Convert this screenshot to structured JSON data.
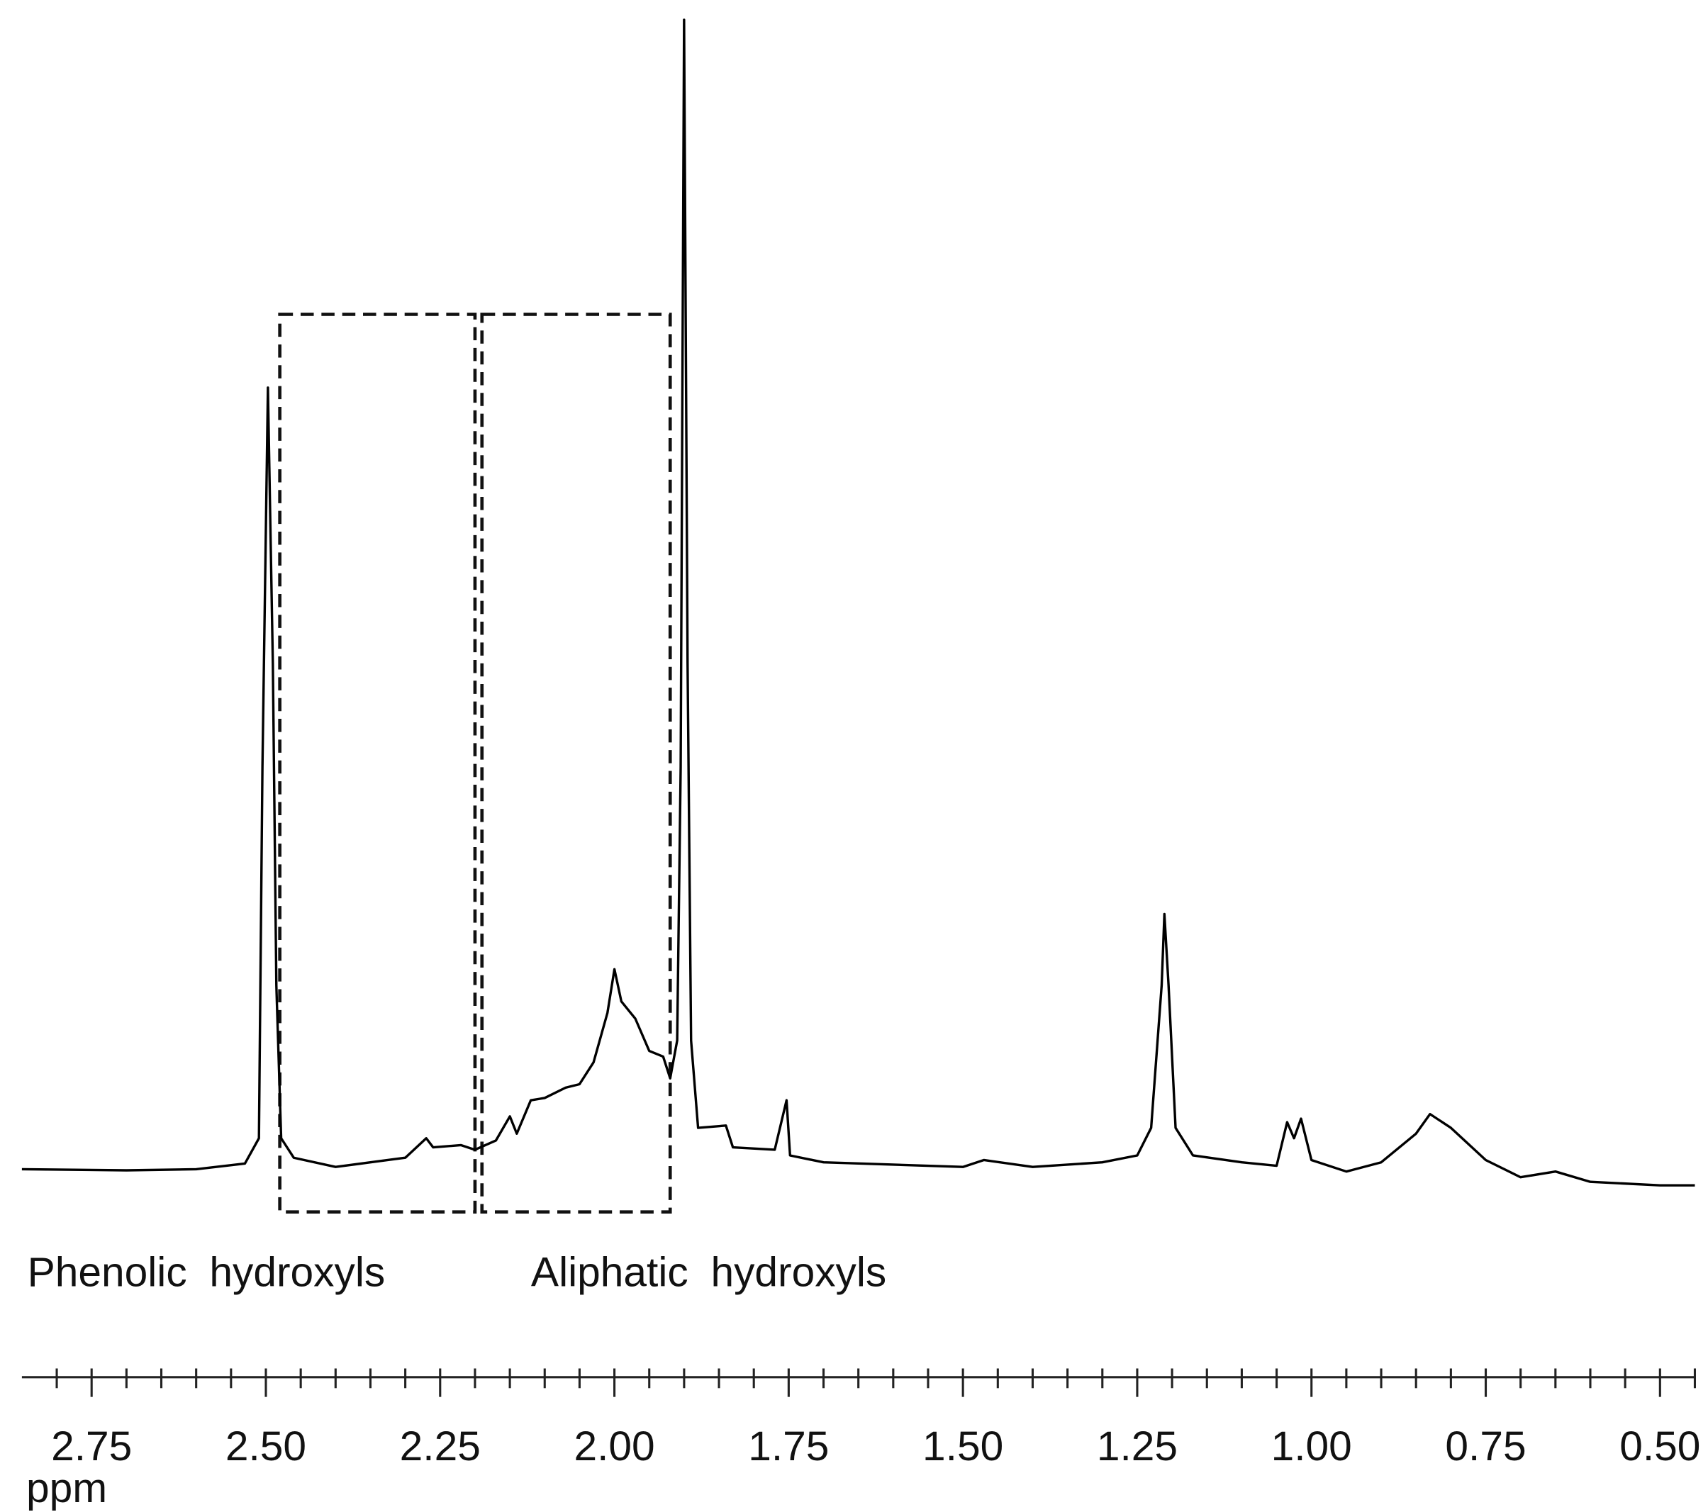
{
  "chart_data": {
    "type": "line",
    "x_label": "ppm",
    "color": "#000000",
    "xlim": [
      2.85,
      0.45
    ],
    "ylim": [
      -2,
      100
    ],
    "xticks": [
      {
        "value": 2.75,
        "label": "2.75"
      },
      {
        "value": 2.5,
        "label": "2.50"
      },
      {
        "value": 2.25,
        "label": "2.25"
      },
      {
        "value": 2.0,
        "label": "2.00"
      },
      {
        "value": 1.75,
        "label": "1.75"
      },
      {
        "value": 1.5,
        "label": "1.50"
      },
      {
        "value": 1.25,
        "label": "1.25"
      },
      {
        "value": 1.0,
        "label": "1.00"
      },
      {
        "value": 0.75,
        "label": "0.75"
      },
      {
        "value": 0.5,
        "label": "0.50"
      }
    ],
    "minor_xticks": [
      2.8,
      2.7,
      2.65,
      2.6,
      2.55,
      2.45,
      2.4,
      2.35,
      2.3,
      2.2,
      2.15,
      2.1,
      2.05,
      1.95,
      1.9,
      1.85,
      1.8,
      1.7,
      1.65,
      1.6,
      1.55,
      1.45,
      1.4,
      1.35,
      1.3,
      1.2,
      1.15,
      1.1,
      1.05,
      0.95,
      0.9,
      0.85,
      0.8,
      0.7,
      0.65,
      0.6,
      0.55,
      0.45
    ],
    "regions": [
      {
        "label": "Phenolic hydroxyls",
        "range": [
          2.48,
          2.2
        ]
      },
      {
        "label": "Aliphatic hydroxyls",
        "range": [
          2.19,
          1.92
        ]
      }
    ],
    "x": [
      2.85,
      2.7,
      2.6,
      2.53,
      2.51,
      2.505,
      2.497,
      2.49,
      2.485,
      2.478,
      2.46,
      2.4,
      2.35,
      2.3,
      2.27,
      2.26,
      2.22,
      2.2,
      2.17,
      2.15,
      2.14,
      2.12,
      2.1,
      2.07,
      2.05,
      2.03,
      2.01,
      2.0,
      1.99,
      1.97,
      1.95,
      1.93,
      1.92,
      1.91,
      1.905,
      1.9,
      1.895,
      1.89,
      1.88,
      1.84,
      1.83,
      1.77,
      1.753,
      1.748,
      1.7,
      1.5,
      1.47,
      1.4,
      1.3,
      1.25,
      1.23,
      1.215,
      1.211,
      1.205,
      1.195,
      1.17,
      1.1,
      1.05,
      1.035,
      1.025,
      1.015,
      1.0,
      0.95,
      0.9,
      0.85,
      0.83,
      0.8,
      0.75,
      0.7,
      0.65,
      0.6,
      0.5,
      0.45
    ],
    "values": [
      0,
      -0.1,
      0,
      0.5,
      2.7,
      35,
      68,
      44,
      16,
      2.7,
      1,
      0.2,
      0.6,
      1,
      2.7,
      1.9,
      2.1,
      1.7,
      2.5,
      4.6,
      3.1,
      6,
      6.2,
      7.1,
      7.4,
      9.3,
      13.6,
      17.4,
      14.6,
      13.1,
      10.3,
      9.8,
      7.9,
      11.2,
      35,
      100,
      44,
      11.2,
      3.6,
      3.8,
      1.9,
      1.7,
      6,
      1.2,
      0.6,
      0.2,
      0.8,
      0.2,
      0.6,
      1.2,
      3.6,
      16,
      22.2,
      16,
      3.6,
      1.2,
      0.6,
      0.3,
      4.1,
      2.7,
      4.4,
      0.8,
      -0.2,
      0.6,
      3.1,
      4.8,
      3.6,
      0.8,
      -0.7,
      -0.2,
      -1.1,
      -1.4,
      -1.4
    ]
  }
}
